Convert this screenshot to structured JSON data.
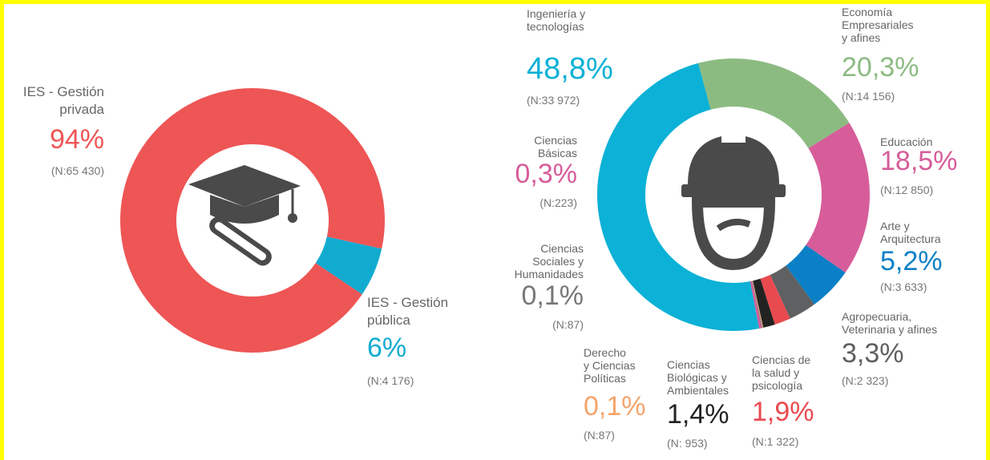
{
  "chart_data": [
    {
      "type": "donut",
      "categories": [
        "IES - Gestión\nprivada",
        "IES - Gestión\npública"
      ],
      "values": [
        94,
        6
      ],
      "value_labels": [
        "94%",
        "6%"
      ],
      "count_labels": [
        "(N:65 430)",
        "(N:4 176)"
      ],
      "colors": [
        "#ee5555",
        "#12abd0"
      ]
    },
    {
      "type": "donut",
      "categories": [
        "Economía\nEmpresariales\ny afines",
        "Educación",
        "Arte y\nArquitectura",
        "Agropecuaria,\nVeterinaria y afines",
        "Ciencias de\nla salud y\npsicología",
        "Ciencias\nBiológicas y\nAmbientales",
        "Derecho\ny Ciencias\nPolíticas",
        "Ciencias\nSociales y\nHumanidades",
        "Ciencias\nBásicas",
        "Ingeniería y\ntecnologías"
      ],
      "values": [
        20.3,
        18.5,
        5.2,
        3.3,
        1.9,
        1.4,
        0.1,
        0.1,
        0.3,
        48.8
      ],
      "value_labels": [
        "20,3%",
        "18,5%",
        "5,2%",
        "3,3%",
        "1,9%",
        "1,4%",
        "0,1%",
        "0,1%",
        "0,3%",
        "48,8%"
      ],
      "count_labels": [
        "(N:14 156)",
        "(N:12 850)",
        "(N:3 633)",
        "(N:2 323)",
        "(N:1 322)",
        "(N: 953)",
        "(N:87)",
        "(N:87)",
        "(N:223)",
        "(N:33 972)"
      ],
      "colors": [
        "#8cbb82",
        "#d65d9a",
        "#0c80c6",
        "#5f6062",
        "#e94a4f",
        "#222222",
        "#f4a46c",
        "#77787a",
        "#d65d9a",
        "#0bb1d6"
      ]
    }
  ]
}
